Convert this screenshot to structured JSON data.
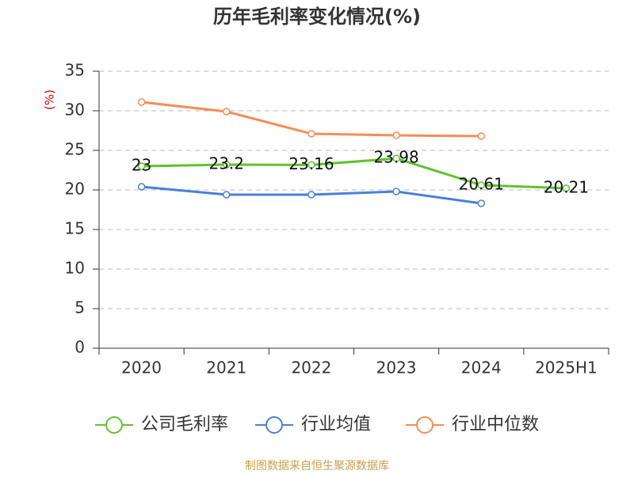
{
  "chart_data": {
    "type": "line",
    "title": "历年毛利率变化情况(%)",
    "y_label": "(%)",
    "categories": [
      "2020",
      "2021",
      "2022",
      "2023",
      "2024",
      "2025H1"
    ],
    "series": [
      {
        "name": "公司毛利率",
        "color": "#5ec429",
        "values": [
          23,
          23.2,
          23.16,
          23.98,
          20.61,
          20.21
        ],
        "data_labels": true
      },
      {
        "name": "行业均值",
        "color": "#4a7fd9",
        "values": [
          20.4,
          19.4,
          19.4,
          19.8,
          18.3,
          null
        ]
      },
      {
        "name": "行业中位数",
        "color": "#f78c57",
        "values": [
          31.1,
          29.9,
          27.1,
          26.9,
          26.8,
          null
        ]
      }
    ],
    "ylim": [
      0,
      35
    ],
    "yticks": [
      0,
      5,
      10,
      15,
      20,
      25,
      30,
      35
    ],
    "grid": true,
    "source": "制图数据来自恒生聚源数据库"
  }
}
